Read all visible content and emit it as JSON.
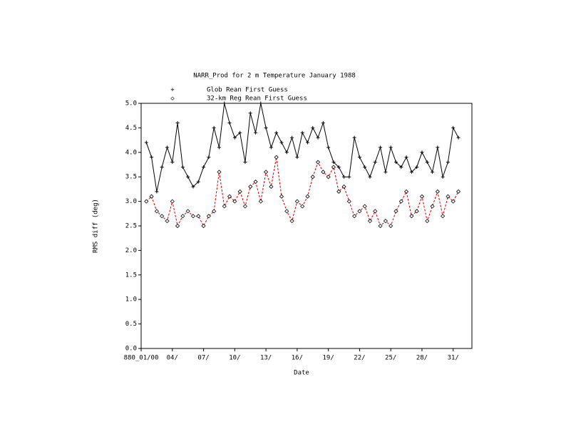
{
  "chart_data": {
    "type": "line",
    "title": "NARR_Prod for 2 m Temperature January 1988",
    "xlabel": "Date",
    "ylabel": "RMS diff (deg)",
    "x": [
      1.5,
      2,
      2.5,
      3,
      3.5,
      4,
      4.5,
      5,
      5.5,
      6,
      6.5,
      7,
      7.5,
      8,
      8.5,
      9,
      9.5,
      10,
      10.5,
      11,
      11.5,
      12,
      12.5,
      13,
      13.5,
      14,
      14.5,
      15,
      15.5,
      16,
      16.5,
      17,
      17.5,
      18,
      18.5,
      19,
      19.5,
      20,
      20.5,
      21,
      21.5,
      22,
      22.5,
      23,
      23.5,
      24,
      24.5,
      25,
      25.5,
      26,
      26.5,
      27,
      27.5,
      28,
      28.5,
      29,
      29.5,
      30,
      30.5,
      31,
      31.5
    ],
    "series": [
      {
        "name": "Glob Rean First Guess",
        "marker_label": "+",
        "color": "#000000",
        "values": [
          4.2,
          3.9,
          3.2,
          3.7,
          4.1,
          3.8,
          4.6,
          3.7,
          3.5,
          3.3,
          3.4,
          3.7,
          3.9,
          4.5,
          4.1,
          5.0,
          4.6,
          4.3,
          4.4,
          3.8,
          4.8,
          4.4,
          5.0,
          4.5,
          4.1,
          4.4,
          4.2,
          4.0,
          4.3,
          3.9,
          4.4,
          4.2,
          4.5,
          4.3,
          4.6,
          4.1,
          3.8,
          3.7,
          3.5,
          3.5,
          4.3,
          3.9,
          3.7,
          3.5,
          3.8,
          4.1,
          3.6,
          4.1,
          3.8,
          3.7,
          3.9,
          3.6,
          3.7,
          4.0,
          3.8,
          3.6,
          4.1,
          3.5,
          3.8,
          4.5,
          4.3
        ]
      },
      {
        "name": "32-km Reg Rean First Guess",
        "marker_label": "◇",
        "color": "#cc0000",
        "values": [
          3.0,
          3.1,
          2.8,
          2.7,
          2.6,
          3.0,
          2.5,
          2.7,
          2.8,
          2.7,
          2.7,
          2.5,
          2.7,
          2.8,
          3.6,
          2.9,
          3.1,
          3.0,
          3.2,
          2.9,
          3.3,
          3.4,
          3.0,
          3.6,
          3.3,
          3.9,
          3.1,
          2.8,
          2.6,
          3.0,
          2.9,
          3.1,
          3.5,
          3.8,
          3.6,
          3.5,
          3.7,
          3.2,
          3.3,
          3.0,
          2.7,
          2.8,
          2.9,
          2.6,
          2.8,
          2.5,
          2.6,
          2.5,
          2.8,
          3.0,
          3.2,
          2.7,
          2.8,
          3.1,
          2.6,
          2.9,
          3.2,
          2.7,
          3.1,
          3.0,
          3.2
        ]
      }
    ],
    "xlim": [
      1,
      32.8
    ],
    "xticks": [
      {
        "value": 1,
        "label": "880_01/00"
      },
      {
        "value": 4,
        "label": "04/"
      },
      {
        "value": 7,
        "label": "07/"
      },
      {
        "value": 10,
        "label": "10/"
      },
      {
        "value": 13,
        "label": "13/"
      },
      {
        "value": 16,
        "label": "16/"
      },
      {
        "value": 19,
        "label": "19/"
      },
      {
        "value": 22,
        "label": "22/"
      },
      {
        "value": 25,
        "label": "25/"
      },
      {
        "value": 28,
        "label": "28/"
      },
      {
        "value": 31,
        "label": "31/"
      }
    ],
    "ylim": [
      0,
      5
    ],
    "yticks": [
      {
        "value": 0,
        "label": "0.0"
      },
      0.5,
      {
        "value": 1,
        "label": "1.0"
      },
      1.5,
      {
        "value": 2,
        "label": "2.0"
      },
      2.5,
      {
        "value": 3,
        "label": "3.0"
      },
      3.5,
      {
        "value": 4,
        "label": "4.0"
      },
      4.5,
      {
        "value": 5,
        "label": "5.0"
      }
    ],
    "grid": false
  }
}
